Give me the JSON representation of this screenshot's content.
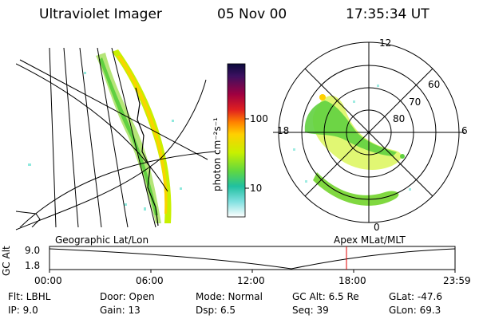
{
  "header": {
    "instrument": "Ultraviolet Imager",
    "date": "05 Nov 00",
    "time": "17:35:34 UT"
  },
  "colorbar": {
    "label": "photon cm⁻²s⁻¹",
    "ticks": [
      "100",
      "10"
    ],
    "colors": [
      "#0a0a3c",
      "#3c1060",
      "#7a0a50",
      "#b00030",
      "#e02020",
      "#ff8000",
      "#ffd000",
      "#c8f000",
      "#60d840",
      "#20c0a0",
      "#60e0e0",
      "#c0f0f0",
      "#ffffff"
    ]
  },
  "polar_plot": {
    "mlt_labels": [
      "12",
      "18",
      "6",
      "0"
    ],
    "lat_labels": [
      "60",
      "70",
      "80"
    ]
  },
  "geo_panel": {
    "caption": "Geographic Lat/Lon"
  },
  "apex_panel": {
    "caption": "Apex MLat/MLT"
  },
  "altitude_plot": {
    "ylabel": "GC Alt",
    "yticks": [
      "9.0",
      "1.8"
    ],
    "xticks": [
      "00:00",
      "06:00",
      "12:00",
      "18:00",
      "23:59"
    ],
    "marker_color": "#e00000"
  },
  "info": {
    "filter": "Flt: LBHL",
    "ip": "IP:  9.0",
    "door": "Door: Open",
    "gain": "Gain: 13",
    "mode": "Mode: Normal",
    "dsp": "Dsp:     6.5",
    "gc_alt": "GC Alt: 6.5 Re",
    "seq": "Seq: 39",
    "glat": "GLat:  -47.6",
    "glon": "GLon:  69.3"
  }
}
